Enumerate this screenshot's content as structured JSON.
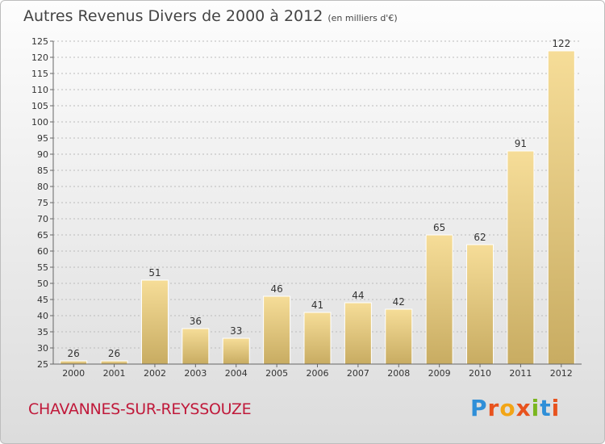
{
  "header": {
    "title": "Autres Revenus Divers de 2000 à 2012",
    "subtitle": "(en milliers d'€)"
  },
  "footer": {
    "commune": "CHAVANNES-SUR-REYSSOUZE",
    "brand": "Proxiti"
  },
  "colors": {
    "bar_light": "#f6dd98",
    "bar_dark": "#c8ac62",
    "commune_text": "#c0193a",
    "brand_letters": [
      "#2f8fd8",
      "#e8531e",
      "#f2a516",
      "#e8531e",
      "#7ab61f",
      "#2f8fd8",
      "#e8531e"
    ]
  },
  "chart_data": {
    "type": "bar",
    "title": "Autres Revenus Divers de 2000 à 2012",
    "subtitle": "(en milliers d'€)",
    "categories": [
      "2000",
      "2001",
      "2002",
      "2003",
      "2004",
      "2005",
      "2006",
      "2007",
      "2008",
      "2009",
      "2010",
      "2011",
      "2012"
    ],
    "values": [
      26,
      26,
      51,
      36,
      33,
      46,
      41,
      44,
      42,
      65,
      62,
      91,
      122
    ],
    "ylim": [
      25,
      125
    ],
    "yticks": [
      25,
      30,
      35,
      40,
      45,
      50,
      55,
      60,
      65,
      70,
      75,
      80,
      85,
      90,
      95,
      100,
      105,
      110,
      115,
      120,
      125
    ],
    "grid": "horizontal dashed",
    "data_labels": true
  }
}
